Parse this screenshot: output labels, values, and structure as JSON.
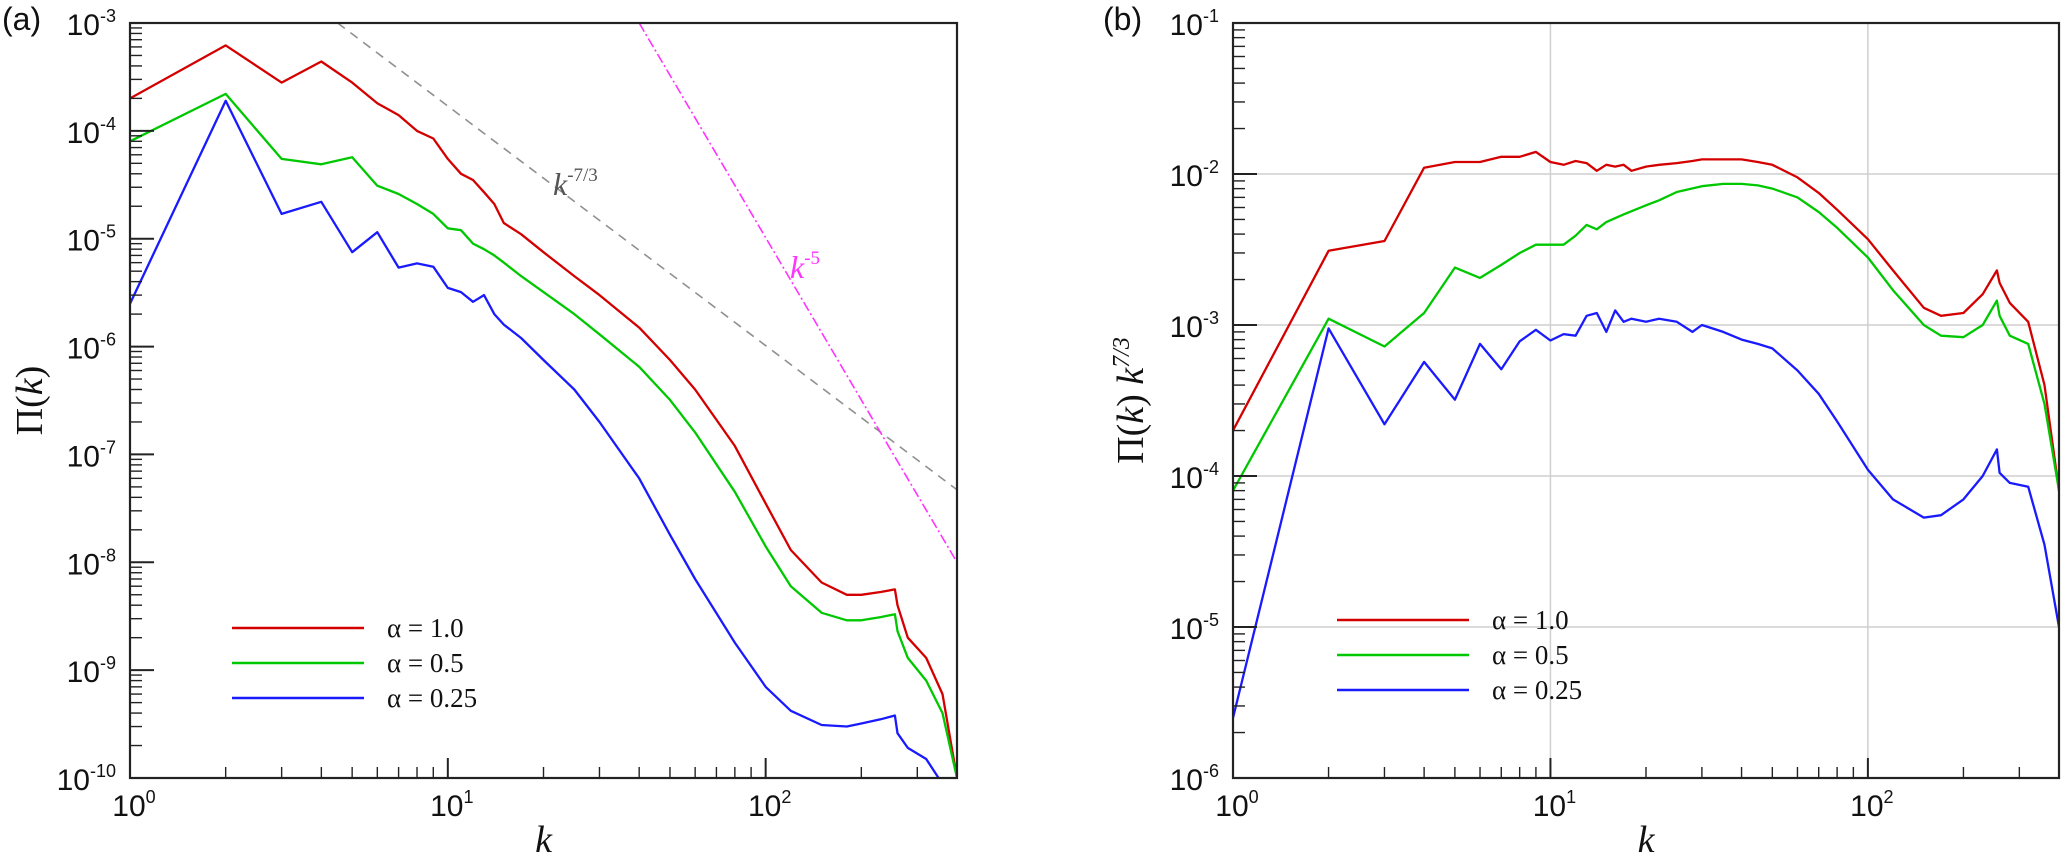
{
  "chart_data": [
    {
      "panel_label": "(a)",
      "type": "line",
      "xscale": "log",
      "yscale": "log",
      "xlim": [
        1,
        400
      ],
      "ylim": [
        1e-10,
        0.001
      ],
      "xlabel": "k",
      "ylabel": "Π(k)",
      "ylabel_parts": {
        "main": "Π(",
        "var": "k",
        "close": ")",
        "suffix": "",
        "sup": ""
      },
      "grid": false,
      "x_ticks": [
        {
          "base": "10",
          "exp": "0",
          "value": 1
        },
        {
          "base": "10",
          "exp": "1",
          "value": 10
        },
        {
          "base": "10",
          "exp": "2",
          "value": 100
        }
      ],
      "y_ticks": [
        {
          "base": "10",
          "exp": "-10",
          "value": 1e-10
        },
        {
          "base": "10",
          "exp": "-9",
          "value": 1e-09
        },
        {
          "base": "10",
          "exp": "-8",
          "value": 1e-08
        },
        {
          "base": "10",
          "exp": "-7",
          "value": 1e-07
        },
        {
          "base": "10",
          "exp": "-6",
          "value": 1e-06
        },
        {
          "base": "10",
          "exp": "-5",
          "value": 1e-05
        },
        {
          "base": "10",
          "exp": "-4",
          "value": 0.0001
        },
        {
          "base": "10",
          "exp": "-3",
          "value": 0.001
        }
      ],
      "legend": {
        "placement": "lower-left",
        "entries": [
          "α = 1.0",
          "α = 0.5",
          "α = 0.25"
        ]
      },
      "series": [
        {
          "name": "α = 1.0",
          "color": "#d40000",
          "x": [
            1,
            2,
            3,
            4,
            5,
            6,
            7,
            8,
            9,
            10,
            11,
            12,
            13,
            14,
            15,
            17,
            20,
            25,
            30,
            40,
            50,
            60,
            80,
            100,
            120,
            150,
            180,
            200,
            230,
            255,
            260,
            280,
            320,
            360,
            400
          ],
          "y": [
            0.0002,
            0.00062,
            0.00028,
            0.00044,
            0.00028,
            0.00018,
            0.00014,
            0.0001,
            8.5e-05,
            5.5e-05,
            4e-05,
            3.5e-05,
            2.7e-05,
            2.1e-05,
            1.4e-05,
            1.1e-05,
            7.5e-06,
            4.5e-06,
            3e-06,
            1.5e-06,
            7.5e-07,
            4e-07,
            1.2e-07,
            3.5e-08,
            1.3e-08,
            6.5e-09,
            5e-09,
            5e-09,
            5.3e-09,
            5.6e-09,
            4e-09,
            2e-09,
            1.3e-09,
            6e-10,
            1e-10
          ]
        },
        {
          "name": "α = 0.5",
          "color": "#00c800",
          "x": [
            1,
            2,
            3,
            4,
            5,
            6,
            7,
            8,
            9,
            10,
            11,
            12,
            13,
            14,
            15,
            17,
            20,
            25,
            30,
            40,
            50,
            60,
            80,
            100,
            120,
            150,
            180,
            200,
            230,
            255,
            260,
            280,
            320,
            360,
            400
          ],
          "y": [
            8e-05,
            0.00022,
            5.5e-05,
            4.9e-05,
            5.7e-05,
            3.1e-05,
            2.6e-05,
            2.1e-05,
            1.7e-05,
            1.25e-05,
            1.2e-05,
            9e-06,
            8e-06,
            7e-06,
            6e-06,
            4.5e-06,
            3.2e-06,
            2e-06,
            1.3e-06,
            6.5e-07,
            3.2e-07,
            1.6e-07,
            4.5e-08,
            1.4e-08,
            6e-09,
            3.4e-09,
            2.9e-09,
            2.9e-09,
            3.1e-09,
            3.3e-09,
            2.3e-09,
            1.3e-09,
            8e-10,
            4e-10,
            1e-10
          ]
        },
        {
          "name": "α = 0.25",
          "color": "#1a1aff",
          "x": [
            1,
            2,
            3,
            4,
            5,
            6,
            7,
            8,
            9,
            10,
            11,
            12,
            13,
            14,
            15,
            17,
            20,
            25,
            30,
            40,
            50,
            60,
            80,
            100,
            120,
            150,
            180,
            200,
            230,
            255,
            260,
            280,
            320,
            350
          ],
          "y": [
            2.5e-06,
            0.00019,
            1.7e-05,
            2.2e-05,
            7.5e-06,
            1.15e-05,
            5.4e-06,
            5.9e-06,
            5.5e-06,
            3.5e-06,
            3.2e-06,
            2.6e-06,
            3e-06,
            2e-06,
            1.6e-06,
            1.2e-06,
            7.5e-07,
            4e-07,
            2e-07,
            6e-08,
            1.8e-08,
            7e-09,
            1.8e-09,
            7e-10,
            4.2e-10,
            3.1e-10,
            3e-10,
            3.2e-10,
            3.5e-10,
            3.8e-10,
            2.6e-10,
            1.9e-10,
            1.5e-10,
            1e-10
          ]
        }
      ],
      "reference_lines": [
        {
          "name": "k^-7/3",
          "label": "k",
          "label_exp": "-7/3",
          "slope": -2.3333,
          "color": "#909090",
          "style": "dashed",
          "x": [
            4.5,
            400
          ],
          "y": [
            0.001,
            4.7e-08
          ]
        },
        {
          "name": "k^-5",
          "label": "k",
          "label_exp": "-5",
          "slope": -5,
          "color": "#ff33ff",
          "style": "dashdot",
          "x": [
            40,
            400
          ],
          "y": [
            0.001,
            1e-08
          ]
        }
      ]
    },
    {
      "panel_label": "(b)",
      "type": "line",
      "xscale": "log",
      "yscale": "log",
      "xlim": [
        1,
        400
      ],
      "ylim": [
        1e-06,
        0.1
      ],
      "xlabel": "k",
      "ylabel": "Π(k) k^7/3",
      "ylabel_parts": {
        "main": "Π(",
        "var": "k",
        "close": ")",
        "suffix": " k",
        "sup": "7/3"
      },
      "grid": true,
      "x_ticks": [
        {
          "base": "10",
          "exp": "0",
          "value": 1
        },
        {
          "base": "10",
          "exp": "1",
          "value": 10
        },
        {
          "base": "10",
          "exp": "2",
          "value": 100
        }
      ],
      "y_ticks": [
        {
          "base": "10",
          "exp": "-6",
          "value": 1e-06
        },
        {
          "base": "10",
          "exp": "-5",
          "value": 1e-05
        },
        {
          "base": "10",
          "exp": "-4",
          "value": 0.0001
        },
        {
          "base": "10",
          "exp": "-3",
          "value": 0.001
        },
        {
          "base": "10",
          "exp": "-2",
          "value": 0.01
        },
        {
          "base": "10",
          "exp": "-1",
          "value": 0.1
        }
      ],
      "legend": {
        "placement": "lower-left",
        "entries": [
          "α = 1.0",
          "α = 0.5",
          "α = 0.25"
        ]
      },
      "series": [
        {
          "name": "α = 1.0",
          "color": "#d40000",
          "x": [
            1,
            2,
            3,
            4,
            5,
            6,
            7,
            8,
            9,
            10,
            11,
            12,
            13,
            14,
            15,
            16,
            17,
            18,
            20,
            22,
            25,
            28,
            30,
            35,
            40,
            45,
            50,
            60,
            70,
            80,
            100,
            120,
            150,
            170,
            200,
            230,
            255,
            260,
            280,
            320,
            360,
            400
          ],
          "y": [
            0.0002,
            0.0031,
            0.0036,
            0.011,
            0.012,
            0.012,
            0.013,
            0.013,
            0.014,
            0.012,
            0.0115,
            0.0122,
            0.0118,
            0.0105,
            0.0115,
            0.0112,
            0.0115,
            0.0105,
            0.0112,
            0.0115,
            0.0118,
            0.0122,
            0.0125,
            0.0125,
            0.0125,
            0.012,
            0.0115,
            0.0095,
            0.0075,
            0.0058,
            0.0037,
            0.0023,
            0.0013,
            0.00115,
            0.0012,
            0.0016,
            0.0023,
            0.0019,
            0.0014,
            0.00105,
            0.0004,
            8e-05
          ]
        },
        {
          "name": "α = 0.5",
          "color": "#00c800",
          "x": [
            1,
            2,
            3,
            4,
            5,
            6,
            7,
            8,
            9,
            10,
            11,
            12,
            13,
            14,
            15,
            17,
            20,
            22,
            25,
            30,
            35,
            40,
            45,
            50,
            60,
            70,
            80,
            100,
            120,
            150,
            170,
            200,
            230,
            255,
            260,
            280,
            320,
            360,
            400
          ],
          "y": [
            8e-05,
            0.0011,
            0.00072,
            0.0012,
            0.0024,
            0.00205,
            0.0025,
            0.003,
            0.0034,
            0.0034,
            0.0034,
            0.0039,
            0.0046,
            0.0043,
            0.0048,
            0.0054,
            0.0062,
            0.0067,
            0.0076,
            0.0083,
            0.0086,
            0.0086,
            0.0084,
            0.008,
            0.007,
            0.0056,
            0.0044,
            0.0028,
            0.0017,
            0.001,
            0.00085,
            0.00083,
            0.001,
            0.00145,
            0.00115,
            0.00085,
            0.00075,
            0.0003,
            8e-05
          ]
        },
        {
          "name": "α = 0.25",
          "color": "#1a1aff",
          "x": [
            1,
            2,
            3,
            4,
            5,
            6,
            7,
            8,
            9,
            10,
            11,
            12,
            13,
            14,
            15,
            16,
            17,
            18,
            20,
            22,
            25,
            28,
            30,
            35,
            40,
            45,
            50,
            60,
            70,
            80,
            100,
            120,
            150,
            170,
            200,
            230,
            255,
            260,
            280,
            320,
            360,
            400
          ],
          "y": [
            2.5e-06,
            0.00095,
            0.00022,
            0.00057,
            0.00032,
            0.00075,
            0.00051,
            0.00078,
            0.00093,
            0.00079,
            0.00087,
            0.00085,
            0.00115,
            0.0012,
            0.0009,
            0.00125,
            0.00105,
            0.0011,
            0.00105,
            0.0011,
            0.00105,
            0.0009,
            0.001,
            0.0009,
            0.0008,
            0.00075,
            0.0007,
            0.0005,
            0.00035,
            0.00023,
            0.00011,
            7e-05,
            5.3e-05,
            5.5e-05,
            7e-05,
            0.0001,
            0.00015,
            0.000105,
            9e-05,
            8.5e-05,
            3.5e-05,
            1e-05
          ]
        }
      ],
      "reference_lines": []
    }
  ]
}
